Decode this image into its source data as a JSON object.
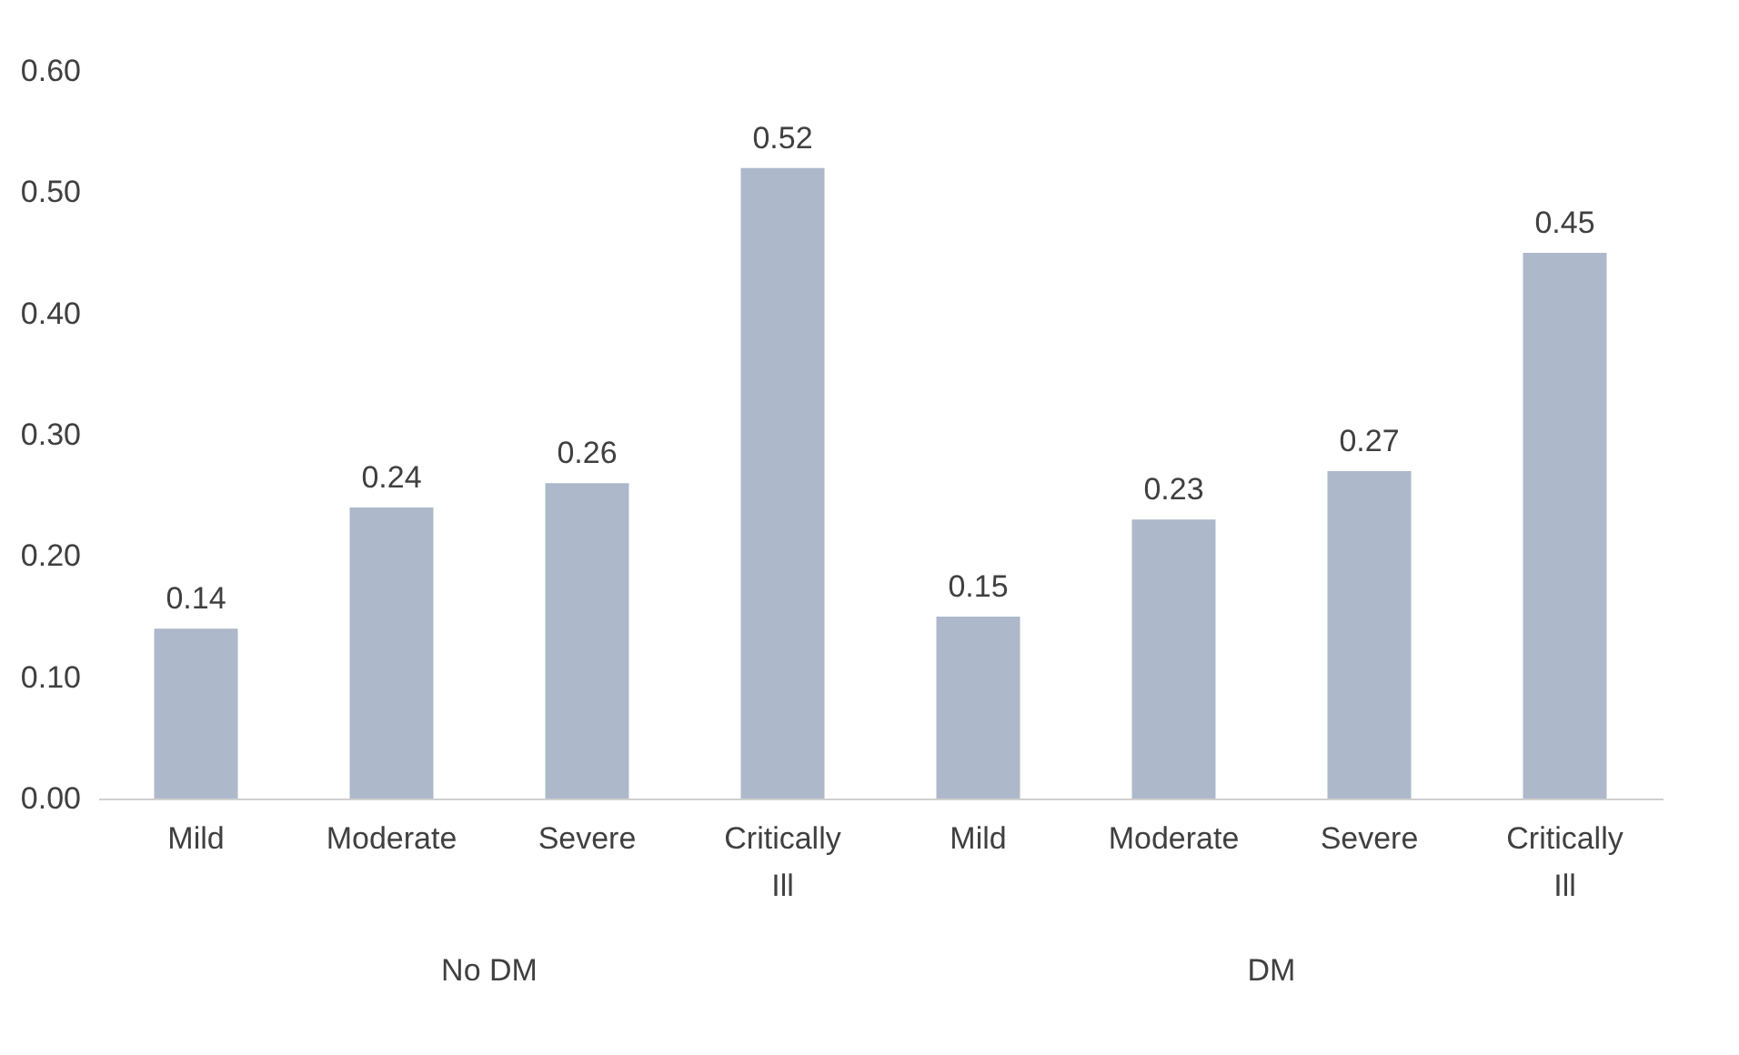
{
  "chart_data": {
    "type": "bar",
    "categories": [
      "Mild",
      "Moderate",
      "Severe",
      "Critically Ill",
      "Mild",
      "Moderate",
      "Severe",
      "Critically Ill"
    ],
    "values": [
      0.14,
      0.24,
      0.26,
      0.52,
      0.15,
      0.23,
      0.27,
      0.45
    ],
    "color": "#adb9ca",
    "ylim": [
      0,
      0.6
    ],
    "yticks": [
      {
        "value": 0,
        "label": "0.00"
      },
      {
        "value": 0.1,
        "label": "0.10"
      },
      {
        "value": 0.2,
        "label": "0.20"
      },
      {
        "value": 0.3,
        "label": "0.30"
      },
      {
        "value": 0.4,
        "label": "0.40"
      },
      {
        "value": 0.5,
        "label": "0.50"
      },
      {
        "value": 0.6,
        "label": "0.60"
      }
    ],
    "data_labels": true,
    "grid": false,
    "annotations": [
      "No DM",
      "DM"
    ]
  }
}
